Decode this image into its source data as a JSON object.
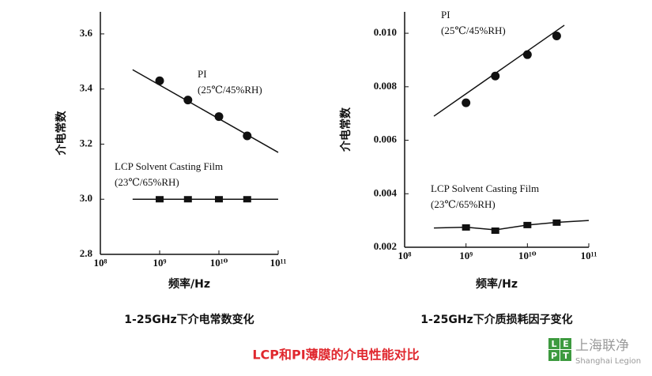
{
  "chart_data": [
    {
      "type": "scatter",
      "ylabel": "介电常数",
      "xlabel": "频率/Hz",
      "caption": "1-25GHz下介电常数变化",
      "xscale": "log",
      "xlim": [
        100000000,
        100000000000
      ],
      "ylim": [
        2.8,
        3.68
      ],
      "xticks": [
        {
          "value": 100000000,
          "label": "10⁸"
        },
        {
          "value": 1000000000,
          "label": "10⁹"
        },
        {
          "value": 10000000000,
          "label": "10¹⁰"
        },
        {
          "value": 100000000000,
          "label": "10¹¹"
        }
      ],
      "yticks": [
        {
          "value": 2.8,
          "label": "2.8"
        },
        {
          "value": 3.0,
          "label": "3.0"
        },
        {
          "value": 3.2,
          "label": "3.2"
        },
        {
          "value": 3.4,
          "label": "3.4"
        },
        {
          "value": 3.6,
          "label": "3.6"
        }
      ],
      "series": [
        {
          "name": "PI",
          "condition": "(25℃/45%RH)",
          "marker": "circle",
          "color": "#111111",
          "x": [
            1000000000,
            3000000000,
            10000000000,
            30000000000
          ],
          "values": [
            3.43,
            3.36,
            3.3,
            3.23
          ],
          "fit_x": [
            350000000,
            100000000000
          ],
          "fit_values": [
            3.47,
            3.17
          ]
        },
        {
          "name": "LCP Solvent Casting Film",
          "condition": "(23℃/65%RH)",
          "marker": "square",
          "color": "#111111",
          "x": [
            1000000000,
            3000000000,
            10000000000,
            30000000000
          ],
          "values": [
            3.0,
            3.0,
            3.0,
            3.0
          ],
          "fit_x": [
            350000000,
            100000000000
          ],
          "fit_values": [
            3.0,
            3.0
          ]
        }
      ]
    },
    {
      "type": "scatter",
      "ylabel": "介电常数",
      "xlabel": "频率/Hz",
      "caption": "1-25GHz下介质损耗因子变化",
      "xscale": "log",
      "xlim": [
        100000000,
        100000000000
      ],
      "ylim": [
        0.002,
        0.0108
      ],
      "xticks": [
        {
          "value": 100000000,
          "label": "10⁸"
        },
        {
          "value": 1000000000,
          "label": "10⁹"
        },
        {
          "value": 10000000000,
          "label": "10¹⁰"
        },
        {
          "value": 100000000000,
          "label": "10¹¹"
        }
      ],
      "yticks": [
        0.002,
        0.004,
        0.006,
        0.008,
        {
          "value": 0.01,
          "label": "0.010"
        }
      ],
      "series": [
        {
          "name": "PI",
          "condition": "(25℃/45%RH)",
          "marker": "circle",
          "color": "#111111",
          "x": [
            1000000000,
            3000000000,
            10000000000,
            30000000000
          ],
          "values": [
            0.0074,
            0.0084,
            0.0092,
            0.0099
          ],
          "fit_x": [
            300000000,
            40000000000
          ],
          "fit_values": [
            0.0069,
            0.0103
          ]
        },
        {
          "name": "LCP Solvent Casting Film",
          "condition": "(23℃/65%RH)",
          "marker": "square",
          "color": "#111111",
          "x": [
            1000000000,
            3000000000,
            10000000000,
            30000000000
          ],
          "values": [
            0.00274,
            0.00262,
            0.00283,
            0.00292
          ],
          "fit_x": [
            300000000,
            1000000000,
            3000000000,
            10000000000,
            30000000000,
            100000000000
          ],
          "fit_values": [
            0.00272,
            0.00275,
            0.00265,
            0.00283,
            0.00293,
            0.003
          ]
        }
      ]
    }
  ],
  "title": "LCP和PI薄膜的介电性能对比",
  "watermark": {
    "logo": [
      "L",
      "E",
      "P",
      "T"
    ],
    "name": "上海联净",
    "english": "Shanghai Legion"
  }
}
